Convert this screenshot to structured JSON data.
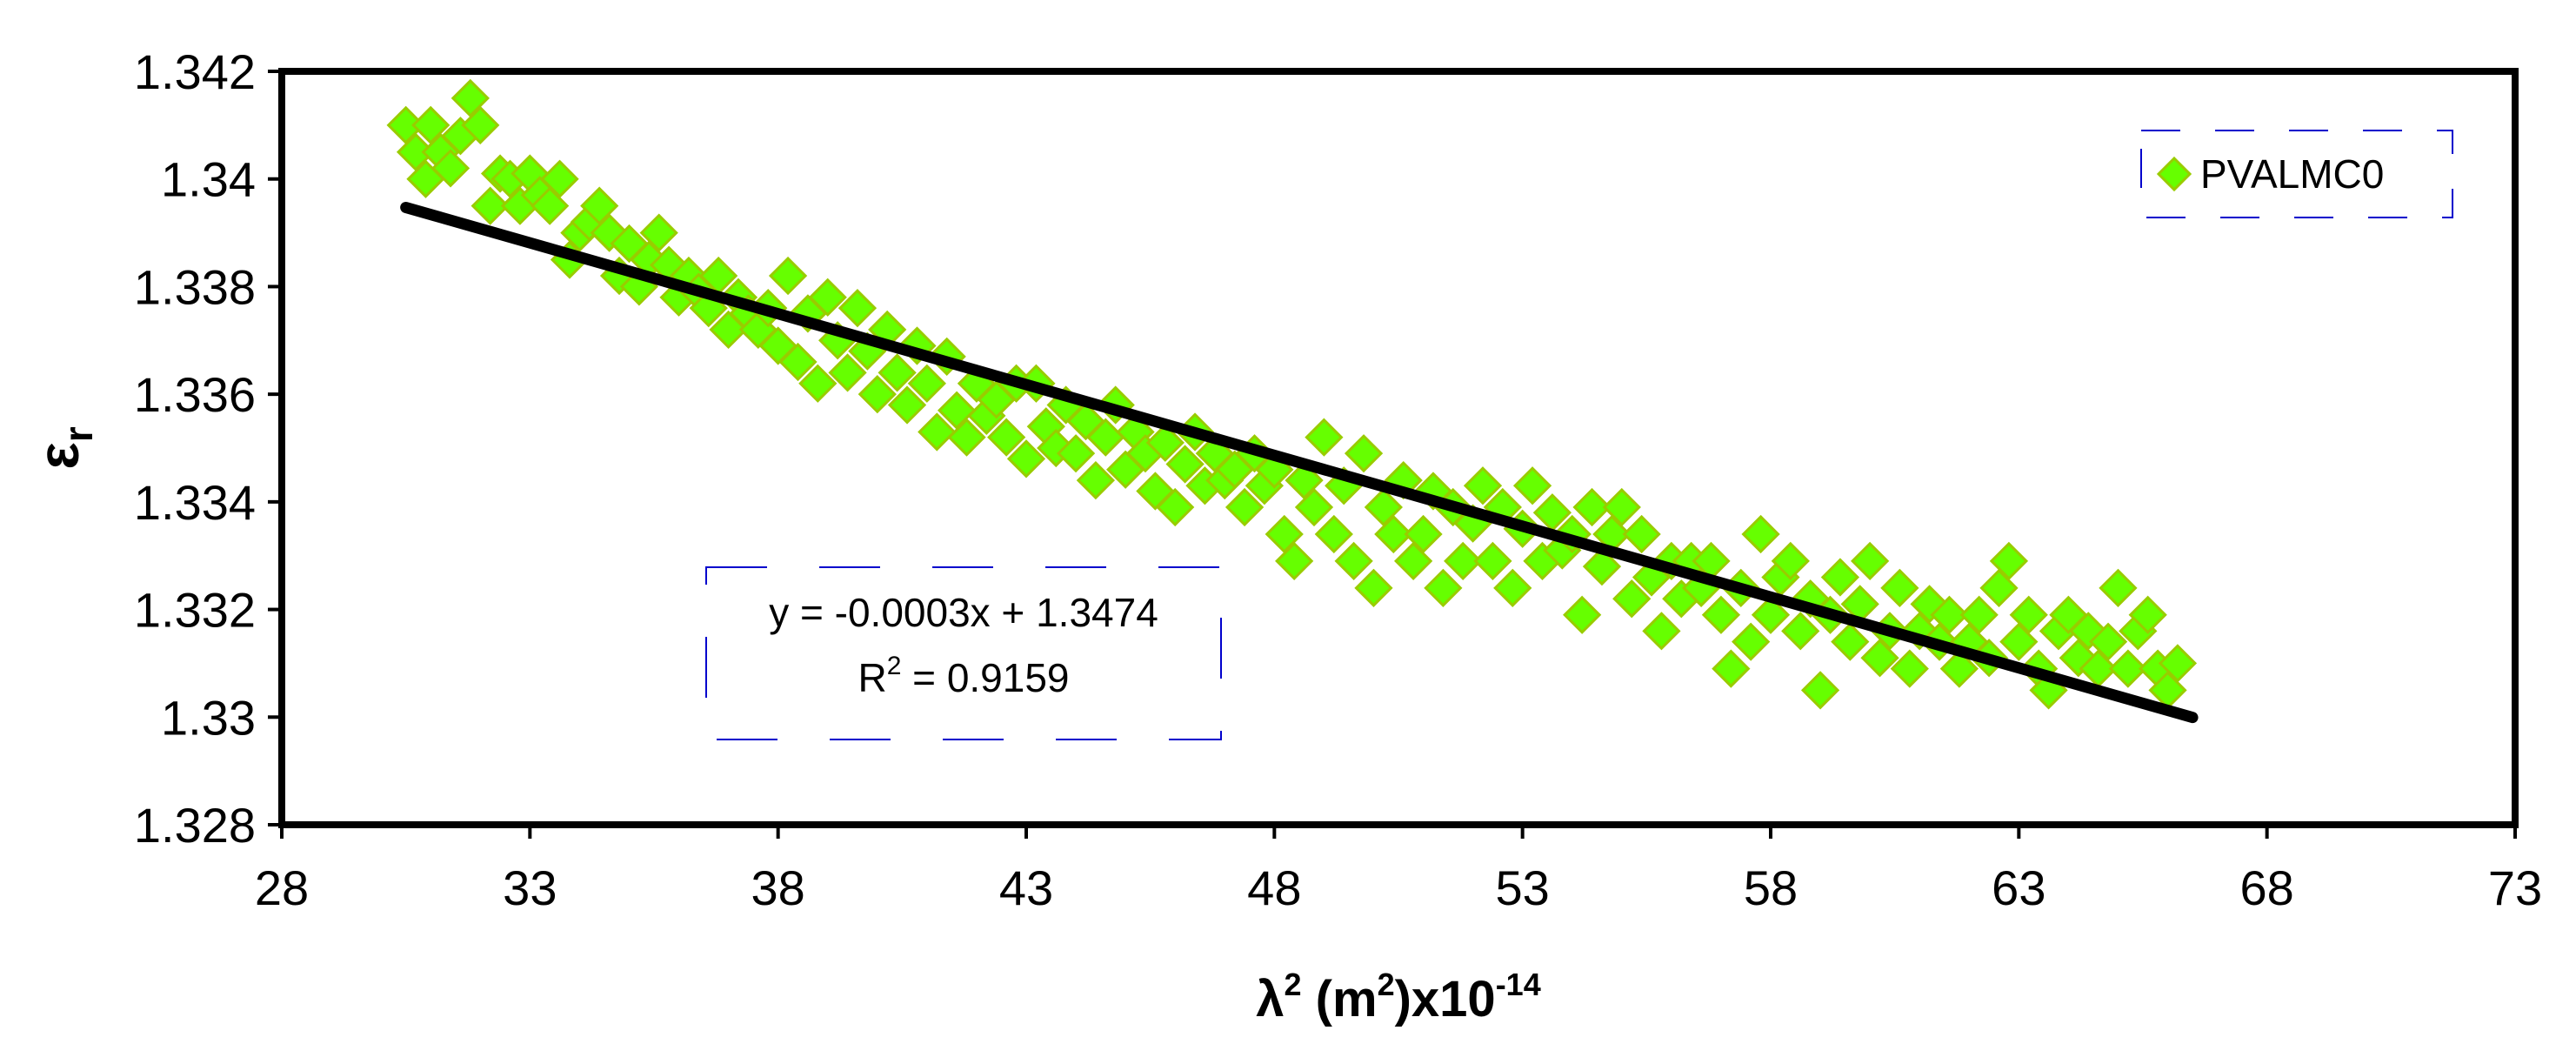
{
  "chart_data": {
    "type": "scatter",
    "title": "",
    "xlabel": {
      "base": "λ",
      "sup1": "2",
      "mid1": " (m",
      "sup2": "2",
      "mid2": ")x10",
      "sup3": "-14"
    },
    "ylabel": {
      "base": "ε",
      "sub": "r"
    },
    "xlim": [
      28,
      73
    ],
    "ylim": [
      1.328,
      1.342
    ],
    "x_ticks": [
      "28",
      "33",
      "38",
      "43",
      "48",
      "53",
      "58",
      "63",
      "68",
      "73"
    ],
    "y_ticks": [
      "1.328",
      "1.33",
      "1.332",
      "1.334",
      "1.336",
      "1.338",
      "1.34",
      "1.342"
    ],
    "grid": false,
    "legend": {
      "position": "top-right",
      "entries": [
        "PVALMC0"
      ]
    },
    "marker_color": "#66ff00",
    "marker_edge_color": "#99cc00",
    "trendline": {
      "color": "#000000",
      "x_range": [
        30.5,
        66.5
      ],
      "slope": -0.0003,
      "intercept": 1.3474,
      "equation": "y = -0.0003x + 1.3474",
      "r2_label": "R",
      "r2_sup": "2",
      "r2_value": " = 0.9159"
    },
    "series": [
      {
        "name": "PVALMC0",
        "points": [
          [
            30.5,
            1.341
          ],
          [
            30.7,
            1.3405
          ],
          [
            30.9,
            1.34
          ],
          [
            31.0,
            1.341
          ],
          [
            31.2,
            1.3405
          ],
          [
            31.4,
            1.3402
          ],
          [
            31.6,
            1.3408
          ],
          [
            31.8,
            1.3415
          ],
          [
            32.0,
            1.341
          ],
          [
            32.2,
            1.3395
          ],
          [
            32.4,
            1.3401
          ],
          [
            32.6,
            1.34
          ],
          [
            32.8,
            1.3395
          ],
          [
            33.0,
            1.3401
          ],
          [
            33.2,
            1.3397
          ],
          [
            33.4,
            1.3395
          ],
          [
            33.6,
            1.34
          ],
          [
            33.8,
            1.3385
          ],
          [
            34.0,
            1.339
          ],
          [
            34.2,
            1.3392
          ],
          [
            34.4,
            1.3395
          ],
          [
            34.6,
            1.339
          ],
          [
            34.8,
            1.3382
          ],
          [
            35.0,
            1.3388
          ],
          [
            35.2,
            1.338
          ],
          [
            35.4,
            1.3385
          ],
          [
            35.6,
            1.339
          ],
          [
            35.8,
            1.3384
          ],
          [
            36.0,
            1.3378
          ],
          [
            36.2,
            1.3382
          ],
          [
            36.4,
            1.3379
          ],
          [
            36.6,
            1.3376
          ],
          [
            36.8,
            1.3382
          ],
          [
            37.0,
            1.3372
          ],
          [
            37.2,
            1.3378
          ],
          [
            37.4,
            1.3375
          ],
          [
            37.6,
            1.3372
          ],
          [
            37.8,
            1.3376
          ],
          [
            38.0,
            1.3369
          ],
          [
            38.2,
            1.3382
          ],
          [
            38.4,
            1.3366
          ],
          [
            38.6,
            1.3375
          ],
          [
            38.8,
            1.3362
          ],
          [
            39.0,
            1.3378
          ],
          [
            39.2,
            1.337
          ],
          [
            39.4,
            1.3364
          ],
          [
            39.6,
            1.3376
          ],
          [
            39.8,
            1.3368
          ],
          [
            40.0,
            1.336
          ],
          [
            40.2,
            1.3372
          ],
          [
            40.4,
            1.3364
          ],
          [
            40.6,
            1.3358
          ],
          [
            40.8,
            1.3369
          ],
          [
            41.0,
            1.3362
          ],
          [
            41.2,
            1.3353
          ],
          [
            41.4,
            1.3367
          ],
          [
            41.6,
            1.3357
          ],
          [
            41.8,
            1.3352
          ],
          [
            42.0,
            1.3362
          ],
          [
            42.2,
            1.3356
          ],
          [
            42.4,
            1.3359
          ],
          [
            42.6,
            1.3352
          ],
          [
            42.8,
            1.3362
          ],
          [
            43.0,
            1.3348
          ],
          [
            43.2,
            1.3362
          ],
          [
            43.4,
            1.3354
          ],
          [
            43.6,
            1.335
          ],
          [
            43.8,
            1.3358
          ],
          [
            44.0,
            1.3349
          ],
          [
            44.2,
            1.3355
          ],
          [
            44.4,
            1.3344
          ],
          [
            44.6,
            1.3352
          ],
          [
            44.8,
            1.3358
          ],
          [
            45.0,
            1.3346
          ],
          [
            45.2,
            1.3353
          ],
          [
            45.4,
            1.3349
          ],
          [
            45.6,
            1.3342
          ],
          [
            45.8,
            1.3351
          ],
          [
            46.0,
            1.3339
          ],
          [
            46.2,
            1.3347
          ],
          [
            46.4,
            1.3353
          ],
          [
            46.6,
            1.3343
          ],
          [
            46.8,
            1.3349
          ],
          [
            47.0,
            1.3344
          ],
          [
            47.2,
            1.3346
          ],
          [
            47.4,
            1.3339
          ],
          [
            47.6,
            1.3349
          ],
          [
            47.8,
            1.3343
          ],
          [
            48.0,
            1.3346
          ],
          [
            48.2,
            1.3334
          ],
          [
            48.4,
            1.3329
          ],
          [
            48.6,
            1.3344
          ],
          [
            48.8,
            1.3339
          ],
          [
            49.0,
            1.3352
          ],
          [
            49.2,
            1.3334
          ],
          [
            49.4,
            1.3343
          ],
          [
            49.6,
            1.3329
          ],
          [
            49.8,
            1.3349
          ],
          [
            50.0,
            1.3324
          ],
          [
            50.2,
            1.3339
          ],
          [
            50.4,
            1.3334
          ],
          [
            50.6,
            1.3344
          ],
          [
            50.8,
            1.3329
          ],
          [
            51.0,
            1.3334
          ],
          [
            51.2,
            1.3342
          ],
          [
            51.4,
            1.3324
          ],
          [
            51.6,
            1.3339
          ],
          [
            51.8,
            1.3329
          ],
          [
            52.0,
            1.3336
          ],
          [
            52.2,
            1.3343
          ],
          [
            52.4,
            1.3329
          ],
          [
            52.6,
            1.3339
          ],
          [
            52.8,
            1.3324
          ],
          [
            53.0,
            1.3335
          ],
          [
            53.2,
            1.3343
          ],
          [
            53.4,
            1.3329
          ],
          [
            53.6,
            1.3338
          ],
          [
            53.8,
            1.3331
          ],
          [
            54.0,
            1.3334
          ],
          [
            54.2,
            1.3319
          ],
          [
            54.4,
            1.3339
          ],
          [
            54.6,
            1.3328
          ],
          [
            54.8,
            1.3334
          ],
          [
            55.0,
            1.3339
          ],
          [
            55.2,
            1.3322
          ],
          [
            55.4,
            1.3334
          ],
          [
            55.6,
            1.3326
          ],
          [
            55.8,
            1.3316
          ],
          [
            56.0,
            1.3329
          ],
          [
            56.2,
            1.3322
          ],
          [
            56.4,
            1.3329
          ],
          [
            56.6,
            1.3324
          ],
          [
            56.8,
            1.3329
          ],
          [
            57.0,
            1.3319
          ],
          [
            57.2,
            1.3309
          ],
          [
            57.4,
            1.3324
          ],
          [
            57.6,
            1.3314
          ],
          [
            57.8,
            1.3334
          ],
          [
            58.0,
            1.3319
          ],
          [
            58.2,
            1.3326
          ],
          [
            58.4,
            1.3329
          ],
          [
            58.6,
            1.3316
          ],
          [
            58.8,
            1.3322
          ],
          [
            59.0,
            1.3305
          ],
          [
            59.2,
            1.3319
          ],
          [
            59.4,
            1.3326
          ],
          [
            59.6,
            1.3314
          ],
          [
            59.8,
            1.3321
          ],
          [
            60.0,
            1.3329
          ],
          [
            60.2,
            1.3311
          ],
          [
            60.4,
            1.3316
          ],
          [
            60.6,
            1.3324
          ],
          [
            60.8,
            1.3309
          ],
          [
            61.0,
            1.3316
          ],
          [
            61.2,
            1.3321
          ],
          [
            61.4,
            1.3314
          ],
          [
            61.6,
            1.3319
          ],
          [
            61.8,
            1.3309
          ],
          [
            62.0,
            1.3314
          ],
          [
            62.2,
            1.3319
          ],
          [
            62.4,
            1.3311
          ],
          [
            62.6,
            1.3324
          ],
          [
            62.8,
            1.3329
          ],
          [
            63.0,
            1.3314
          ],
          [
            63.2,
            1.3319
          ],
          [
            63.4,
            1.3309
          ],
          [
            63.6,
            1.3305
          ],
          [
            63.8,
            1.3316
          ],
          [
            64.0,
            1.3319
          ],
          [
            64.2,
            1.3311
          ],
          [
            64.4,
            1.3316
          ],
          [
            64.6,
            1.3309
          ],
          [
            64.8,
            1.3314
          ],
          [
            65.0,
            1.3324
          ],
          [
            65.2,
            1.3309
          ],
          [
            65.4,
            1.3316
          ],
          [
            65.6,
            1.3319
          ],
          [
            65.8,
            1.3309
          ],
          [
            66.0,
            1.3305
          ],
          [
            66.2,
            1.331
          ]
        ]
      }
    ]
  }
}
